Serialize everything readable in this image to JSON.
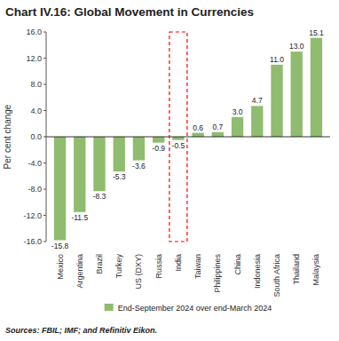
{
  "chart_data": {
    "type": "bar",
    "title": "Chart IV.16: Global Movement in Currencies",
    "categories": [
      "Mexico",
      "Argentina",
      "Brazil",
      "Turkey",
      "US (DXY)",
      "Russia",
      "India",
      "Taiwan",
      "Philippines",
      "China",
      "Indonesia",
      "South Africa",
      "Thailand",
      "Malaysia"
    ],
    "series": [
      {
        "name": "End-September 2024 over end-March 2024",
        "color": "#8fbc6e",
        "values": [
          -15.8,
          -11.5,
          -8.3,
          -5.3,
          -3.6,
          -0.9,
          -0.5,
          0.6,
          0.7,
          3.0,
          4.7,
          11.0,
          13.0,
          15.1
        ],
        "value_labels": [
          "-15.8",
          "-11.5",
          "-8.3",
          "-5.3",
          "-3.6",
          "-0.9",
          "-0.5",
          "0.6",
          "0.7",
          "3.0",
          "4.7",
          "11.0",
          "13.0",
          "15.1"
        ]
      }
    ],
    "ylabel": "Per cent change",
    "ylim": [
      -16.0,
      16.0
    ],
    "yticks": [
      {
        "value": -16.0,
        "label": "-16.0"
      },
      {
        "value": -12.0,
        "label": "-12.0"
      },
      {
        "value": -8.0,
        "label": "-8.0"
      },
      {
        "value": -4.0,
        "label": "-4.0"
      },
      {
        "value": 0.0,
        "label": "0.0"
      },
      {
        "value": 4.0,
        "label": "4.0"
      },
      {
        "value": 8.0,
        "label": "8.0"
      },
      {
        "value": 12.0,
        "label": "12.0"
      },
      {
        "value": 16.0,
        "label": "16.0"
      }
    ],
    "data_labels": true,
    "grid": false,
    "legend": "bottom",
    "source": "Sources: FBIL; IMF; and Refinitiv Eikon.",
    "annotations": [
      {
        "type": "box",
        "category": "India",
        "color": "red",
        "line_style": "dashed"
      }
    ]
  }
}
